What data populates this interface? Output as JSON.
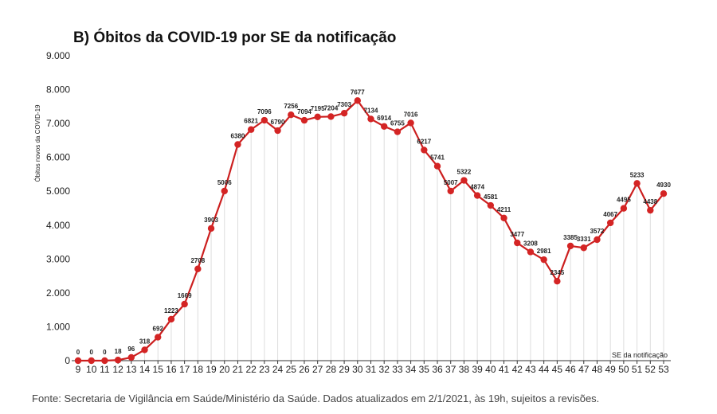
{
  "chart_data": {
    "type": "line",
    "title": "B) Óbitos da COVID-19 por SE da notificação",
    "ylabel": "Óbitos novos da COVID-19",
    "xlabel": "SE da notificação",
    "source": "Fonte: Secretaria de Vigilância em Saúde/Ministério da Saúde. Dados atualizados em 2/1/2021, às 19h, sujeitos a revisões.",
    "ylim": [
      0,
      9000
    ],
    "yticks": [
      0,
      1000,
      2000,
      3000,
      4000,
      5000,
      6000,
      7000,
      8000,
      9000
    ],
    "ytick_labels": [
      "0",
      "1.000",
      "2.000",
      "3.000",
      "4.000",
      "5.000",
      "6.000",
      "7.000",
      "8.000",
      "9.000"
    ],
    "x": [
      "9",
      "10",
      "11",
      "12",
      "13",
      "14",
      "15",
      "16",
      "17",
      "18",
      "19",
      "20",
      "21",
      "22",
      "23",
      "24",
      "25",
      "26",
      "27",
      "28",
      "29",
      "30",
      "31",
      "32",
      "33",
      "34",
      "35",
      "36",
      "37",
      "38",
      "39",
      "40",
      "41",
      "42",
      "43",
      "44",
      "45",
      "46",
      "47",
      "48",
      "49",
      "50",
      "51",
      "52",
      "53"
    ],
    "values": [
      0,
      0,
      0,
      18,
      96,
      318,
      692,
      1223,
      1669,
      2708,
      3903,
      5006,
      6380,
      6821,
      7096,
      6790,
      7256,
      7094,
      7195,
      7204,
      7303,
      7677,
      7134,
      6914,
      6755,
      7016,
      6217,
      5741,
      5007,
      5322,
      4874,
      4581,
      4211,
      3477,
      3208,
      2981,
      2345,
      3385,
      3331,
      3572,
      4067,
      4495,
      5233,
      4438,
      4930
    ],
    "data_labels": [
      "0",
      "0",
      "0",
      "18",
      "96",
      "318",
      "692",
      "1223",
      "1669",
      "2708",
      "3903",
      "5006",
      "6380",
      "6821",
      "7096",
      "6790",
      "7256",
      "7094",
      "7195",
      "7204",
      "7303",
      "7677",
      "7134",
      "6914",
      "6755",
      "7016",
      "6217",
      "5741",
      "5007",
      "5322",
      "4874",
      "4581",
      "4211",
      "3477",
      "3208",
      "2981",
      "2345",
      "3385",
      "3331",
      "3572",
      "4067",
      "4495",
      "5233",
      "4438",
      "4930"
    ],
    "grid": true,
    "line_color": "#cc1f1f",
    "marker_color": "#d42424",
    "grid_color": "#dddddd"
  }
}
